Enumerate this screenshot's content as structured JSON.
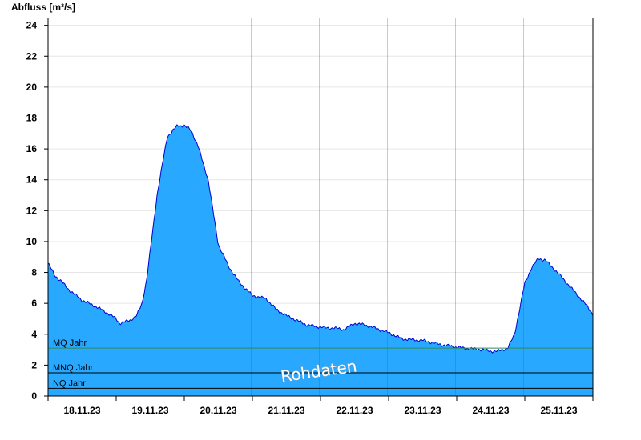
{
  "chart_data": {
    "type": "area",
    "ylabel": "Abfluss [m³/s]",
    "ylim": [
      0,
      24.5
    ],
    "yticks": [
      0,
      2,
      4,
      6,
      8,
      10,
      12,
      14,
      16,
      18,
      20,
      22,
      24
    ],
    "grid": "horizontal",
    "x_range_days": [
      0,
      8
    ],
    "day_labels": [
      "18.11.23",
      "19.11.23",
      "20.11.23",
      "21.11.23",
      "22.11.23",
      "23.11.23",
      "24.11.23",
      "25.11.23"
    ],
    "watermark": "Rohdaten",
    "colors": {
      "fill": "#29a8ff",
      "line": "#0000cc",
      "mq_line": "#2e8b57",
      "ref_line": "#000000",
      "grid": "#e6e6e6"
    },
    "reference_lines": [
      {
        "label": "MQ Jahr",
        "value": 3.1
      },
      {
        "label": "MNQ Jahr",
        "value": 1.5
      },
      {
        "label": "NQ Jahr",
        "value": 0.5
      }
    ],
    "series": [
      {
        "x": [
          0,
          0.1,
          0.2,
          0.3,
          0.5,
          0.7,
          0.9,
          1.0,
          1.05,
          1.2,
          1.3,
          1.38,
          1.45,
          1.6,
          1.75,
          1.9,
          2.0,
          2.1,
          2.2,
          2.35,
          2.5,
          2.65,
          2.8,
          3.0,
          3.2,
          3.35,
          3.5,
          3.65,
          3.8,
          3.95,
          4.1,
          4.2,
          4.35,
          4.5,
          4.65,
          4.8,
          5.0,
          5.2,
          5.5,
          5.8,
          6.1,
          6.4,
          6.5,
          6.6,
          6.75,
          6.85,
          6.95,
          7.0,
          7.1,
          7.2,
          7.3,
          7.5,
          7.7,
          7.9,
          8.0
        ],
        "y": [
          8.6,
          7.8,
          7.4,
          6.9,
          6.2,
          5.8,
          5.3,
          5.0,
          4.7,
          4.9,
          5.2,
          6.0,
          7.6,
          13.0,
          16.8,
          17.5,
          17.5,
          17.2,
          16.2,
          14.0,
          9.8,
          8.4,
          7.4,
          6.5,
          6.3,
          5.6,
          5.2,
          4.9,
          4.6,
          4.5,
          4.4,
          4.4,
          4.3,
          4.7,
          4.6,
          4.4,
          4.1,
          3.7,
          3.6,
          3.3,
          3.1,
          3.0,
          2.9,
          2.9,
          3.1,
          4.0,
          6.2,
          7.3,
          8.3,
          8.9,
          8.8,
          7.9,
          6.9,
          5.9,
          5.3
        ]
      }
    ]
  }
}
